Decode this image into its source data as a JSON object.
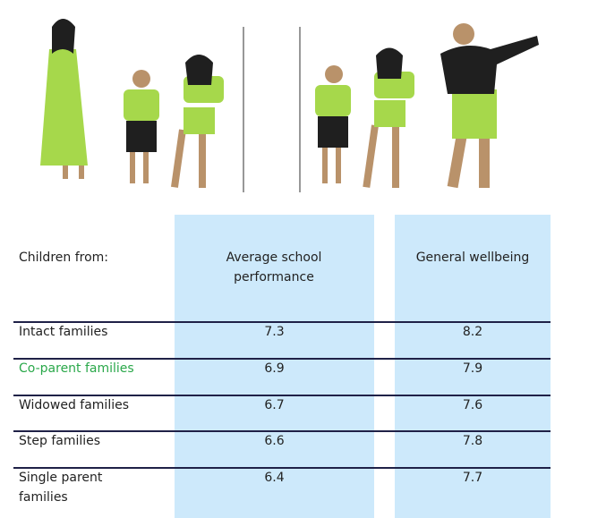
{
  "table": {
    "columns": [
      "Children from:",
      "Average school performance",
      "General wellbeing"
    ],
    "rows": [
      [
        "Intact families",
        7.3,
        8.2
      ],
      [
        "Co-parent families",
        6.9,
        7.9
      ],
      [
        "Widowed families",
        6.7,
        7.6
      ],
      [
        "Step families",
        6.6,
        7.8
      ],
      [
        "Single parent families",
        6.4,
        7.7
      ]
    ]
  }
}
